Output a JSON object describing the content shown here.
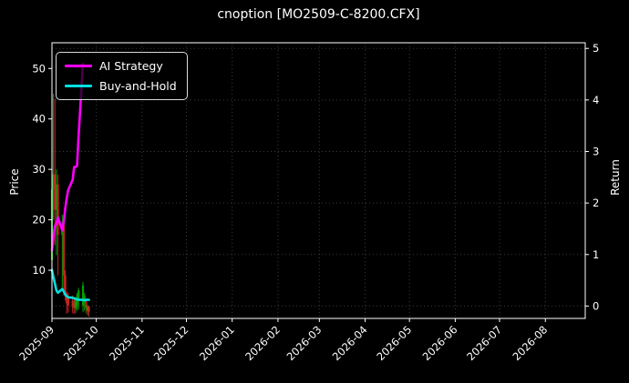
{
  "window": {
    "title": "cnoption [MO2509-C-8200.CFX]"
  },
  "colors": {
    "background": "#000000",
    "text": "#ffffff",
    "spine": "#ffffff",
    "grid": "#3a3a3a",
    "candle_up": "#00a000",
    "candle_down": "#cc2222",
    "ai_strategy": "#ff00ff",
    "buy_and_hold": "#00e0e0"
  },
  "legend": {
    "position": "upper-left",
    "items": [
      {
        "label": "AI Strategy",
        "color": "#ff00ff"
      },
      {
        "label": "Buy-and-Hold",
        "color": "#00e0e0"
      }
    ]
  },
  "chart_data": {
    "type": "candlestick+line",
    "title": "cnoption [MO2509-C-8200.CFX]",
    "grid": "dotted gray, vertical at month ticks, horizontal at Return ticks",
    "legend_position": "upper left",
    "x_axis": {
      "start": "2025-09-01",
      "range_days": [
        0,
        361
      ],
      "tick_labels": [
        "2025-09",
        "2025-10",
        "2025-11",
        "2025-12",
        "2026-01",
        "2026-02",
        "2026-03",
        "2026-04",
        "2026-05",
        "2026-06",
        "2026-07",
        "2026-08"
      ],
      "tick_days": [
        0,
        30,
        61,
        91,
        122,
        153,
        181,
        212,
        242,
        273,
        303,
        334
      ],
      "tick_rotation_deg": 45
    },
    "left_axis": {
      "label": "Price",
      "ticks": [
        10,
        20,
        30,
        40,
        50
      ],
      "range": [
        0.45,
        55.1
      ]
    },
    "right_axis": {
      "label": "Return",
      "ticks": [
        0,
        1,
        2,
        3,
        4,
        5
      ],
      "range": [
        -0.24,
        5.11
      ]
    },
    "candles": {
      "axis": "left",
      "dates": [
        "2025-09-01",
        "2025-09-02",
        "2025-09-03",
        "2025-09-04",
        "2025-09-05",
        "2025-09-08",
        "2025-09-09",
        "2025-09-10",
        "2025-09-11",
        "2025-09-12",
        "2025-09-15",
        "2025-09-16",
        "2025-09-17",
        "2025-09-18",
        "2025-09-19",
        "2025-09-22",
        "2025-09-23",
        "2025-09-24",
        "2025-09-25",
        "2025-09-26"
      ],
      "open": [
        12,
        26,
        29,
        22,
        27,
        17,
        19,
        9,
        5.5,
        4.5,
        4,
        3.5,
        2.5,
        3,
        4,
        3,
        4,
        4,
        2,
        2.8
      ],
      "high": [
        54,
        45,
        44,
        30,
        29,
        21,
        20,
        10,
        5.8,
        5.5,
        5,
        4.5,
        4.5,
        5.5,
        6.5,
        7.7,
        5.5,
        4.5,
        3.2,
        3.0
      ],
      "low": [
        10,
        20,
        15,
        13,
        9,
        6,
        5,
        4,
        1.4,
        1.6,
        1.5,
        1.3,
        1.5,
        2,
        2.2,
        1.7,
        2,
        1.5,
        1.1,
        0.8
      ],
      "close": [
        26,
        29,
        22,
        27,
        17,
        19,
        9,
        5,
        3.5,
        3,
        2.8,
        2.5,
        4,
        5,
        6,
        7,
        5,
        2.5,
        2.8,
        1.8
      ]
    },
    "series": [
      {
        "name": "AI Strategy",
        "axis": "right",
        "color": "#ff00ff",
        "dates": [
          "2025-09-01",
          "2025-09-02",
          "2025-09-03",
          "2025-09-04",
          "2025-09-05",
          "2025-09-08",
          "2025-09-09",
          "2025-09-10",
          "2025-09-11",
          "2025-09-12",
          "2025-09-15",
          "2025-09-16",
          "2025-09-17",
          "2025-09-18",
          "2025-09-19",
          "2025-09-22"
        ],
        "values": [
          1.08,
          1.35,
          1.55,
          1.6,
          1.72,
          1.47,
          1.65,
          1.9,
          2.1,
          2.25,
          2.45,
          2.7,
          2.7,
          2.72,
          3.3,
          4.7
        ]
      },
      {
        "name": "Buy-and-Hold",
        "axis": "right",
        "color": "#00e0e0",
        "dates": [
          "2025-09-01",
          "2025-09-02",
          "2025-09-03",
          "2025-09-04",
          "2025-09-05",
          "2025-09-08",
          "2025-09-09",
          "2025-09-10",
          "2025-09-11",
          "2025-09-12",
          "2025-09-15",
          "2025-09-16",
          "2025-09-17",
          "2025-09-18",
          "2025-09-19",
          "2025-09-22",
          "2025-09-23",
          "2025-09-24",
          "2025-09-25",
          "2025-09-26"
        ],
        "values": [
          0.7,
          0.56,
          0.44,
          0.3,
          0.26,
          0.33,
          0.28,
          0.22,
          0.19,
          0.17,
          0.16,
          0.15,
          0.14,
          0.13,
          0.12,
          0.12,
          0.11,
          0.12,
          0.12,
          0.12
        ]
      }
    ]
  }
}
